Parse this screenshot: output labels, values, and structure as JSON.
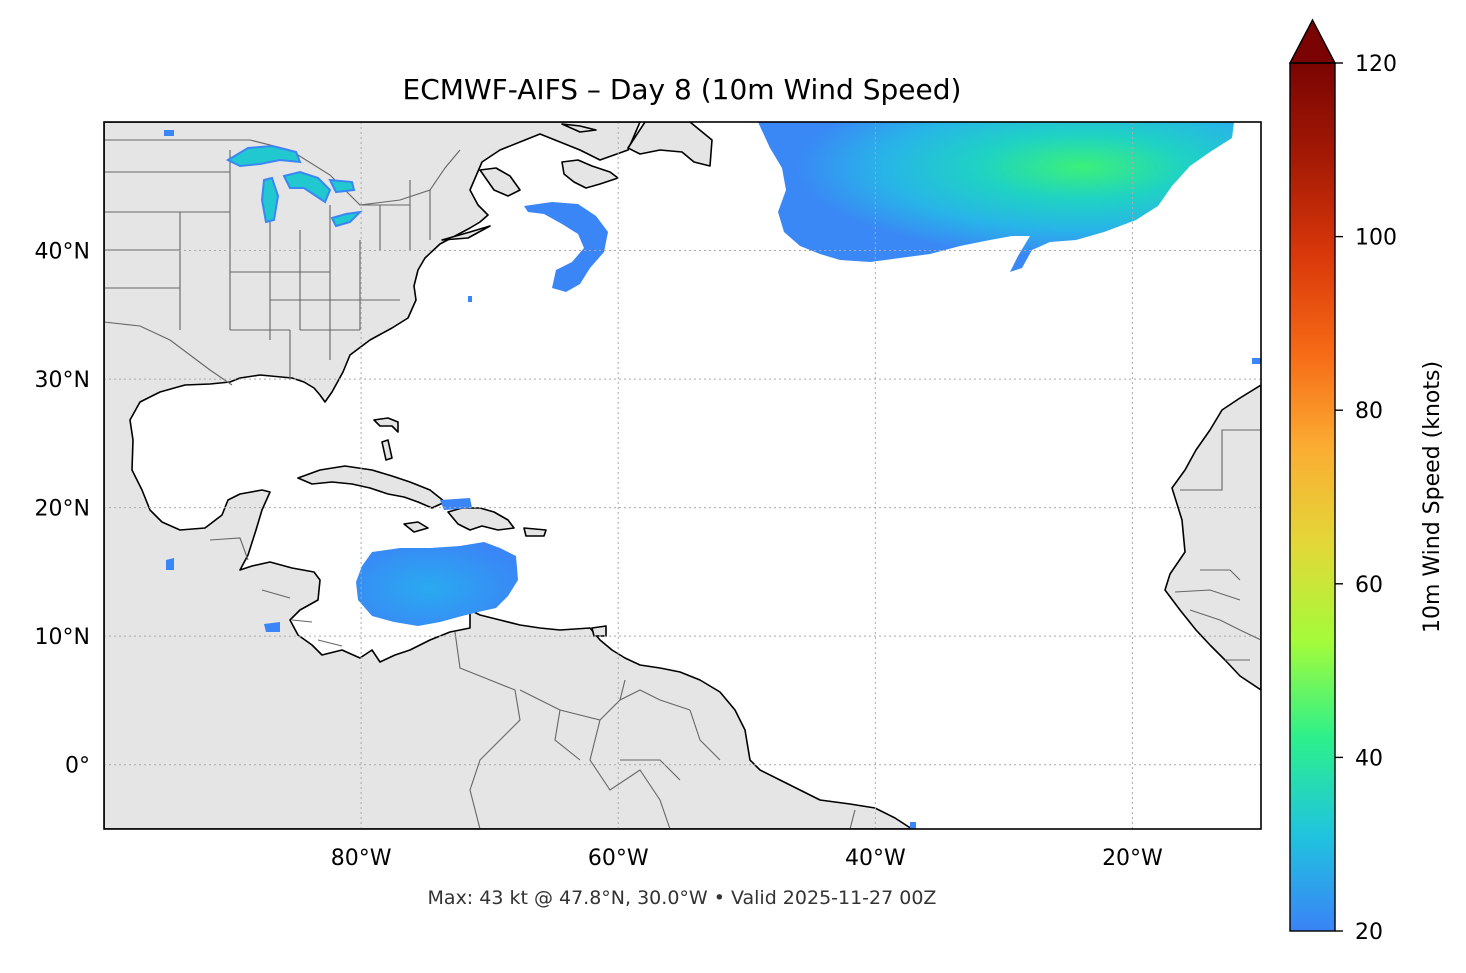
{
  "title": "ECMWF-AIFS – Day 8 (10m Wind Speed)",
  "footer": "Max: 43 kt @ 47.8°N, 30.0°W • Valid 2025-11-27 00Z",
  "map": {
    "lon_range": [
      -100,
      -10
    ],
    "lat_range": [
      -5,
      50
    ],
    "lon_ticks": [
      {
        "value": -80,
        "label": "80°W"
      },
      {
        "value": -60,
        "label": "60°W"
      },
      {
        "value": -40,
        "label": "40°W"
      },
      {
        "value": -20,
        "label": "20°W"
      }
    ],
    "lat_ticks": [
      {
        "value": 40,
        "label": "40°N"
      },
      {
        "value": 30,
        "label": "30°N"
      },
      {
        "value": 20,
        "label": "20°N"
      },
      {
        "value": 10,
        "label": "10°N"
      },
      {
        "value": 0,
        "label": "0°"
      }
    ],
    "gridlines": "dotted",
    "land_color": "#e5e5e5",
    "coast_color": "#000000",
    "border_color": "#666666"
  },
  "colorbar": {
    "label": "10m Wind Speed (knots)",
    "range": [
      20,
      120
    ],
    "extend": "max",
    "ticks": [
      {
        "value": 20,
        "label": "20"
      },
      {
        "value": 40,
        "label": "40"
      },
      {
        "value": 60,
        "label": "60"
      },
      {
        "value": 80,
        "label": "80"
      },
      {
        "value": 100,
        "label": "100"
      },
      {
        "value": 120,
        "label": "120"
      }
    ],
    "colormap": "turbo",
    "stops": [
      "#3a83f6",
      "#20c4de",
      "#2cf08c",
      "#a4fb3a",
      "#e2d838",
      "#fbad33",
      "#f66a16",
      "#d9380a",
      "#a51a05",
      "#7a0403"
    ]
  },
  "wind_features": [
    {
      "name": "north-atlantic-storm",
      "region_lon": [
        -48,
        -22
      ],
      "region_lat": [
        39,
        50
      ],
      "peak_kt": 43
    },
    {
      "name": "caribbean-jet",
      "region_lon": [
        -80,
        -68
      ],
      "region_lat": [
        11,
        17
      ],
      "peak_kt": 28
    },
    {
      "name": "nova-scotia-jet",
      "region_lon": [
        -65,
        -60
      ],
      "region_lat": [
        37,
        43
      ],
      "peak_kt": 25
    },
    {
      "name": "great-lakes-winds",
      "region_lon": [
        -92,
        -82
      ],
      "region_lat": [
        41,
        48
      ],
      "peak_kt": 30
    }
  ]
}
